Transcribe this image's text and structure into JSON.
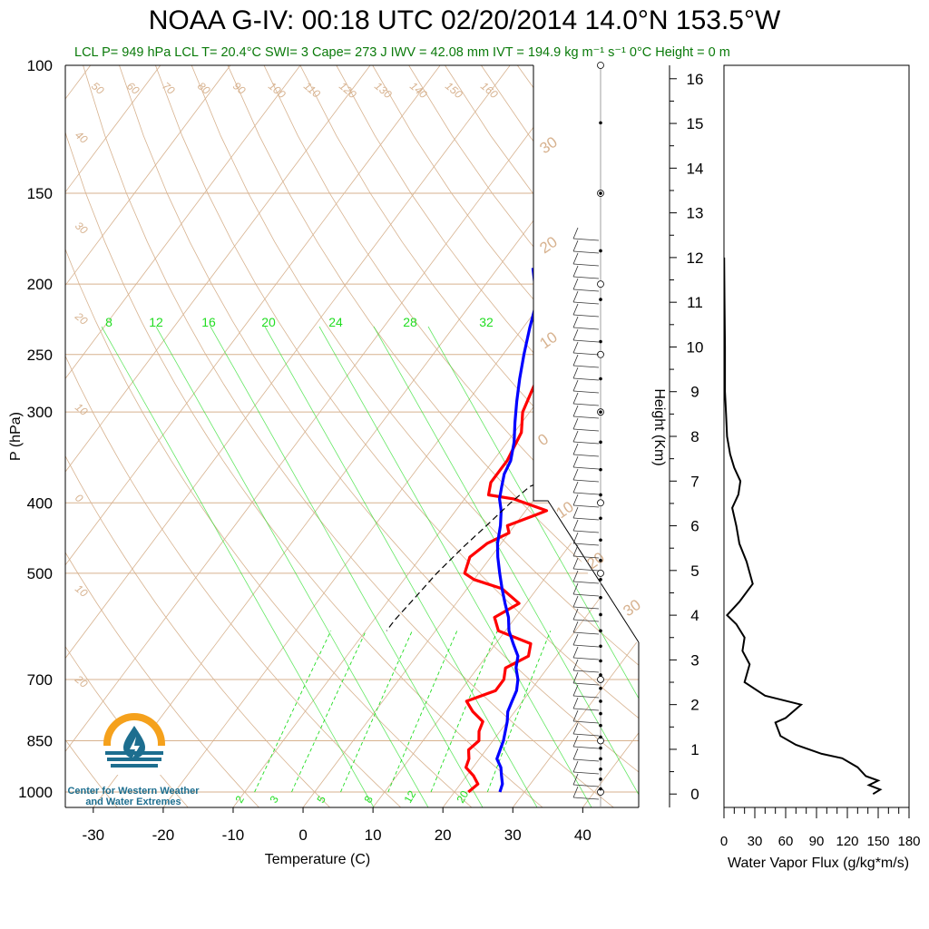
{
  "title": "NOAA G-IV: 00:18 UTC 02/20/2014  14.0°N 153.5°W",
  "subtitle": "LCL P= 949 hPa  LCL T= 20.4°C  SWI= 3  Cape= 273 J  IWV = 42.08 mm  IVT = 194.9 kg m⁻¹ s⁻¹  0°C Height = 0 m",
  "logo": {
    "line1": "Center for Western Weather",
    "line2": "and Water Extremes"
  },
  "colors": {
    "temperature": "#ff0000",
    "dewpoint": "#0000ff",
    "isotherm": "#d7b28f",
    "mixing_ratio": "#22dd22",
    "subtitle": "#0a7a0a",
    "logo_orange": "#f5a11c",
    "logo_blue": "#1d6e8f"
  },
  "chart_data": [
    {
      "type": "line",
      "title": "",
      "xlabel": "Temperature (C)",
      "ylabel": "P (hPa)",
      "xlim": [
        -34,
        48
      ],
      "ylim": [
        1050,
        100
      ],
      "yscale": "log",
      "x_ticks": [
        -30,
        -20,
        -10,
        0,
        10,
        20,
        30,
        40
      ],
      "y_ticks": [
        100,
        150,
        200,
        250,
        300,
        400,
        500,
        700,
        850,
        1000
      ],
      "isotherm_labels": [
        "50",
        "60",
        "70",
        "80",
        "90",
        "100",
        "110",
        "120",
        "130",
        "140",
        "150",
        "160",
        "40",
        "30",
        "20",
        "10",
        "0",
        "10",
        "20"
      ],
      "diagonal_labels": [
        "30",
        "20",
        "10",
        "0",
        "10",
        "20",
        "30"
      ],
      "mixing_ratio_labels_top": [
        "8",
        "12",
        "16",
        "20",
        "24",
        "28",
        "32"
      ],
      "mixing_ratio_labels_bottom": [
        "2",
        "3",
        "5",
        "8",
        "12",
        "20"
      ],
      "series": [
        {
          "color": "#ff0000",
          "points": [
            [
              22,
              1000
            ],
            [
              22.5,
              975
            ],
            [
              21,
              950
            ],
            [
              19,
              925
            ],
            [
              18.5,
              900
            ],
            [
              17.5,
              875
            ],
            [
              18,
              850
            ],
            [
              17,
              825
            ],
            [
              16.5,
              800
            ],
            [
              14,
              775
            ],
            [
              12,
              750
            ],
            [
              15,
              725
            ],
            [
              15,
              700
            ],
            [
              14,
              675
            ],
            [
              16,
              650
            ],
            [
              15,
              625
            ],
            [
              9,
              600
            ],
            [
              7,
              575
            ],
            [
              9,
              550
            ],
            [
              5,
              525
            ],
            [
              0,
              510
            ],
            [
              -2,
              500
            ],
            [
              -3,
              475
            ],
            [
              -2,
              455
            ],
            [
              0,
              440
            ],
            [
              -1,
              430
            ],
            [
              1,
              420
            ],
            [
              2,
              415
            ],
            [
              3,
              410
            ],
            [
              -3,
              395
            ],
            [
              -7,
              390
            ],
            [
              -8,
              375
            ],
            [
              -8,
              350
            ],
            [
              -9,
              320
            ],
            [
              -11,
              300
            ],
            [
              -12,
              280
            ],
            [
              -13,
              260
            ],
            [
              -14,
              240
            ],
            [
              -15,
              220
            ],
            [
              -16,
              200
            ],
            [
              -17,
              190
            ]
          ]
        },
        {
          "color": "#0000ff",
          "points": [
            [
              26.5,
              1000
            ],
            [
              26,
              975
            ],
            [
              25,
              950
            ],
            [
              24,
              925
            ],
            [
              22.5,
              900
            ],
            [
              21.5,
              850
            ],
            [
              20,
              800
            ],
            [
              19,
              775
            ],
            [
              18.5,
              750
            ],
            [
              18,
              725
            ],
            [
              17,
              700
            ],
            [
              15.5,
              675
            ],
            [
              14.5,
              650
            ],
            [
              12.5,
              625
            ],
            [
              10.5,
              600
            ],
            [
              9,
              575
            ],
            [
              7,
              550
            ],
            [
              5,
              525
            ],
            [
              3,
              500
            ],
            [
              1,
              475
            ],
            [
              -0.5,
              455
            ],
            [
              -2,
              430
            ],
            [
              -3.5,
              410
            ],
            [
              -5,
              395
            ],
            [
              -6,
              380
            ],
            [
              -7,
              365
            ],
            [
              -7.5,
              350
            ],
            [
              -9,
              330
            ],
            [
              -11,
              310
            ],
            [
              -13,
              290
            ],
            [
              -15,
              270
            ],
            [
              -17,
              250
            ],
            [
              -19,
              230
            ],
            [
              -21,
              210
            ],
            [
              -23,
              200
            ],
            [
              -25,
              190
            ]
          ]
        },
        {
          "color": "#000000",
          "dash": true,
          "points": [
            [
              4,
              350
            ],
            [
              -2,
              380
            ],
            [
              -3,
              400
            ],
            [
              -4,
              430
            ],
            [
              -5,
              460
            ],
            [
              -6,
              500
            ],
            [
              -6.5,
              540
            ],
            [
              -7,
              580
            ],
            [
              -7,
              600
            ]
          ]
        }
      ]
    },
    {
      "type": "line",
      "xlabel": "Water Vapor Flux (g/kg*m/s)",
      "ylabel": "Height (Km)",
      "xlim": [
        0,
        180
      ],
      "ylim": [
        -0.3,
        16.3
      ],
      "x_ticks": [
        0,
        30,
        60,
        90,
        120,
        150,
        180
      ],
      "y_ticks": [
        0,
        1,
        2,
        3,
        4,
        5,
        6,
        7,
        8,
        9,
        10,
        11,
        12,
        13,
        14,
        15,
        16
      ],
      "series": [
        {
          "color": "#000000",
          "points": [
            [
              145,
              0
            ],
            [
              152,
              0.1
            ],
            [
              141,
              0.2
            ],
            [
              150,
              0.3
            ],
            [
              138,
              0.4
            ],
            [
              130,
              0.6
            ],
            [
              115,
              0.8
            ],
            [
              95,
              0.9
            ],
            [
              70,
              1.1
            ],
            [
              55,
              1.3
            ],
            [
              50,
              1.6
            ],
            [
              60,
              1.7
            ],
            [
              75,
              2.0
            ],
            [
              40,
              2.2
            ],
            [
              20,
              2.5
            ],
            [
              25,
              2.9
            ],
            [
              18,
              3.2
            ],
            [
              20,
              3.5
            ],
            [
              12,
              3.8
            ],
            [
              3,
              4.0
            ],
            [
              15,
              4.3
            ],
            [
              28,
              4.7
            ],
            [
              22,
              5.2
            ],
            [
              15,
              5.6
            ],
            [
              12,
              6.0
            ],
            [
              8,
              6.4
            ],
            [
              14,
              6.7
            ],
            [
              16,
              7.0
            ],
            [
              10,
              7.3
            ],
            [
              6,
              7.6
            ],
            [
              3,
              8.0
            ],
            [
              2,
              8.5
            ],
            [
              1,
              9.0
            ],
            [
              1,
              10.0
            ],
            [
              0.5,
              11.0
            ],
            [
              0.2,
              12.0
            ]
          ]
        }
      ]
    }
  ]
}
